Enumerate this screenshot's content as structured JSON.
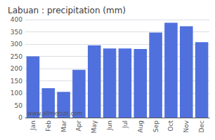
{
  "chart_data": {
    "type": "bar",
    "title": "Labuan : precipitation (mm)",
    "categories": [
      "Jan",
      "Feb",
      "Mar",
      "Apr",
      "May",
      "Jun",
      "Jul",
      "Aug",
      "Sep",
      "Oct",
      "Nov",
      "Dec"
    ],
    "values": [
      250,
      120,
      105,
      195,
      295,
      282,
      282,
      280,
      347,
      387,
      373,
      308
    ],
    "ylim": [
      0,
      400
    ],
    "yticks": [
      0,
      50,
      100,
      150,
      200,
      250,
      300,
      350,
      400
    ],
    "grid": true,
    "annotation": "www.allmetsat.com"
  }
}
